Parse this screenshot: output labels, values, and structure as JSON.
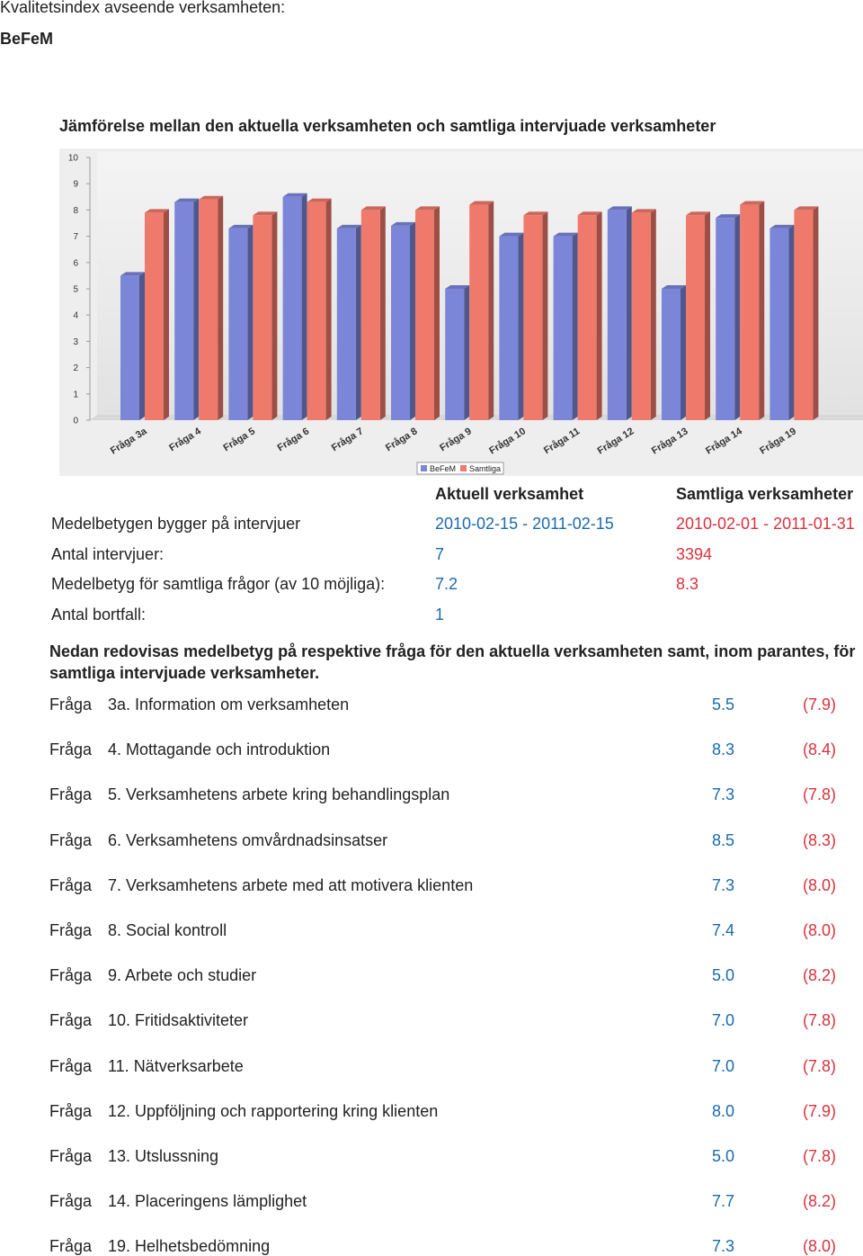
{
  "header": {
    "title": "Kvalitetsindex avseende verksamheten:",
    "unit": "BeFeM",
    "heading": "Jämförelse mellan den aktuella verksamheten och samtliga intervjuade verksamheter"
  },
  "chart_data": {
    "type": "bar",
    "categories": [
      "Fråga 3a",
      "Fråga 4",
      "Fråga 5",
      "Fråga 6",
      "Fråga 7",
      "Fråga 8",
      "Fråga 9",
      "Fråga 10",
      "Fråga 11",
      "Fråga 12",
      "Fråga 13",
      "Fråga 14",
      "Fråga 19"
    ],
    "series": [
      {
        "name": "BeFeM",
        "color": "#7b86d8",
        "values": [
          5.5,
          8.3,
          7.3,
          8.5,
          7.3,
          7.4,
          5.0,
          7.0,
          7.0,
          8.0,
          5.0,
          7.7,
          7.3
        ]
      },
      {
        "name": "Samtliga",
        "color": "#ef7a6c",
        "values": [
          7.9,
          8.4,
          7.8,
          8.3,
          8.0,
          8.0,
          8.2,
          7.8,
          7.8,
          7.9,
          7.8,
          8.2,
          8.0
        ]
      }
    ],
    "ylim": [
      0,
      10
    ],
    "yticks": [
      0,
      1,
      2,
      3,
      4,
      5,
      6,
      7,
      8,
      9,
      10
    ],
    "legend": "bottom"
  },
  "summary": {
    "columns": [
      "Aktuell verksamhet",
      "Samtliga verksamheter"
    ],
    "rows": [
      [
        "Medelbetygen bygger på intervjuer",
        "2010-02-15 - 2011-02-15",
        "2010-02-01 - 2011-01-31"
      ],
      [
        "Antal intervjuer:",
        "7",
        "3394"
      ],
      [
        "Medelbetyg för samtliga frågor (av 10 möjliga):",
        "7.2",
        "8.3"
      ],
      [
        "Antal bortfall:",
        "1",
        null
      ]
    ]
  },
  "intro": "Nedan redovisas medelbetyg på respektive fråga för den aktuella verksamheten samt, inom parantes, för samtliga intervjuade verksamheter.",
  "questions": [
    [
      "Fråga",
      "3a. Information om verksamheten",
      "5.5",
      "(7.9)"
    ],
    [
      "Fråga",
      "4. Mottagande och introduktion",
      "8.3",
      "(8.4)"
    ],
    [
      "Fråga",
      "5. Verksamhetens arbete kring behandlingsplan",
      "7.3",
      "(7.8)"
    ],
    [
      "Fråga",
      "6. Verksamhetens omvårdnadsinsatser",
      "8.5",
      "(8.3)"
    ],
    [
      "Fråga",
      "7. Verksamhetens arbete med att motivera klienten",
      "7.3",
      "(8.0)"
    ],
    [
      "Fråga",
      "8. Social kontroll",
      "7.4",
      "(8.0)"
    ],
    [
      "Fråga",
      "9. Arbete och studier",
      "5.0",
      "(8.2)"
    ],
    [
      "Fråga",
      "10. Fritidsaktiviteter",
      "7.0",
      "(7.8)"
    ],
    [
      "Fråga",
      "11. Nätverksarbete",
      "7.0",
      "(7.8)"
    ],
    [
      "Fråga",
      "12. Uppföljning och rapportering kring klienten",
      "8.0",
      "(7.9)"
    ],
    [
      "Fråga",
      "13. Utslussning",
      "5.0",
      "(7.8)"
    ],
    [
      "Fråga",
      "14. Placeringens lämplighet",
      "7.7",
      "(8.2)"
    ],
    [
      "Fråga",
      "19. Helhetsbedömning",
      "7.3",
      "(8.0)"
    ]
  ]
}
